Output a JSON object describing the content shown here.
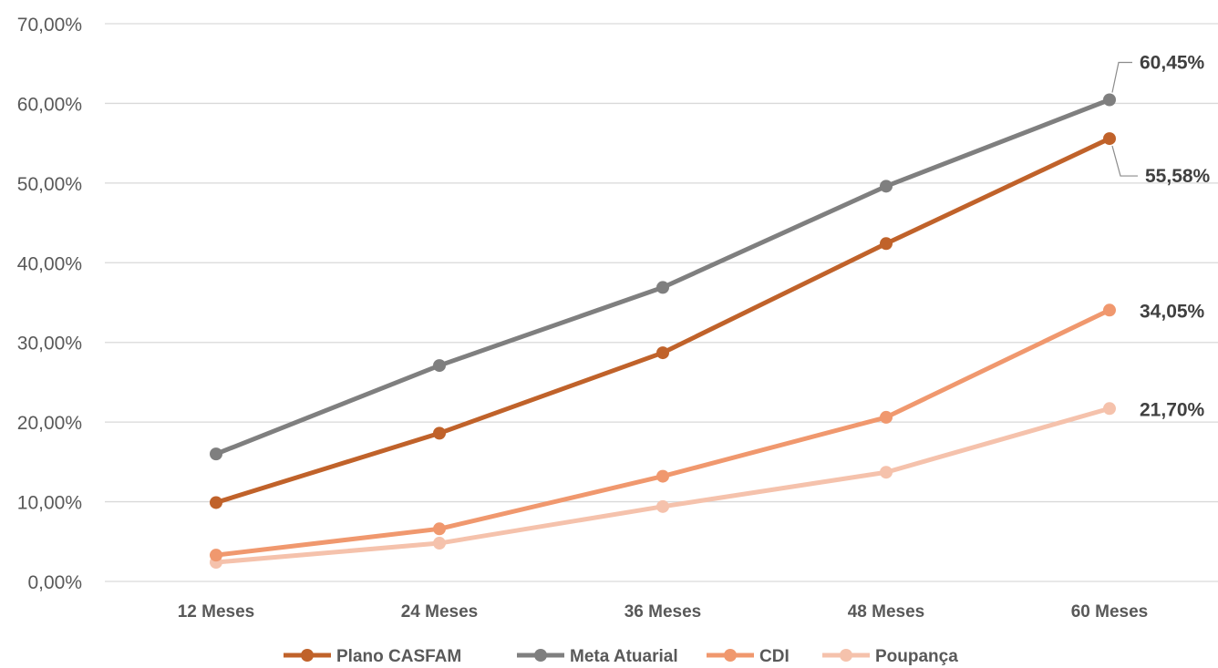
{
  "chart_data": {
    "type": "line",
    "title": "",
    "xlabel": "",
    "ylabel": "",
    "categories": [
      "12 Meses",
      "24 Meses",
      "36 Meses",
      "48 Meses",
      "60 Meses"
    ],
    "ylim": [
      0,
      70
    ],
    "yticks": [
      "0,00%",
      "10,00%",
      "20,00%",
      "30,00%",
      "40,00%",
      "50,00%",
      "60,00%",
      "70,00%"
    ],
    "grid": true,
    "legend_position": "bottom",
    "series": [
      {
        "name": "Plano CASFAM",
        "color": "#C0622A",
        "values": [
          9.9,
          18.6,
          28.7,
          42.4,
          55.58
        ],
        "end_label": "55,58%"
      },
      {
        "name": "Meta Atuarial",
        "color": "#7F7F7F",
        "values": [
          16.0,
          27.1,
          36.9,
          49.6,
          60.45
        ],
        "end_label": "60,45%"
      },
      {
        "name": "CDI",
        "color": "#F0986E",
        "values": [
          3.3,
          6.6,
          13.2,
          20.6,
          34.05
        ],
        "end_label": "34,05%"
      },
      {
        "name": "Poupança",
        "color": "#F5C2AC",
        "values": [
          2.4,
          4.8,
          9.4,
          13.7,
          21.7
        ],
        "end_label": "21,70%"
      }
    ]
  }
}
